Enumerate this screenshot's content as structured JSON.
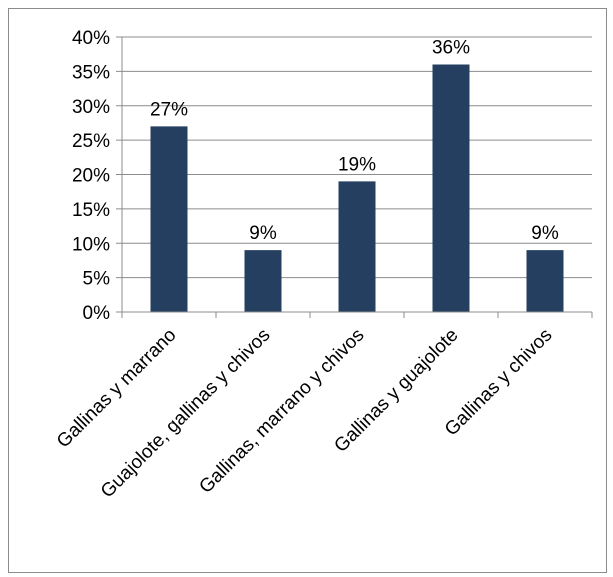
{
  "chart_data": {
    "type": "bar",
    "categories": [
      "Gallinas y marrano",
      "Guajolote, gallinas y chivos",
      "Gallinas, marrano y chivos",
      "Gallinas y guajolote",
      "Gallinas y chivos"
    ],
    "values": [
      27,
      9,
      19,
      36,
      9
    ],
    "data_labels": [
      "27%",
      "9%",
      "19%",
      "36%",
      "9%"
    ],
    "ylim": [
      0,
      40
    ],
    "yticks": [
      0,
      5,
      10,
      15,
      20,
      25,
      30,
      35,
      40
    ],
    "ytick_labels": [
      "0%",
      "5%",
      "10%",
      "15%",
      "20%",
      "25%",
      "30%",
      "35%",
      "40%"
    ],
    "title": "",
    "xlabel": "",
    "ylabel": "",
    "grid": true,
    "legend": "none",
    "bar_color": "#243f60",
    "grid_color": "#8c8c8c"
  }
}
